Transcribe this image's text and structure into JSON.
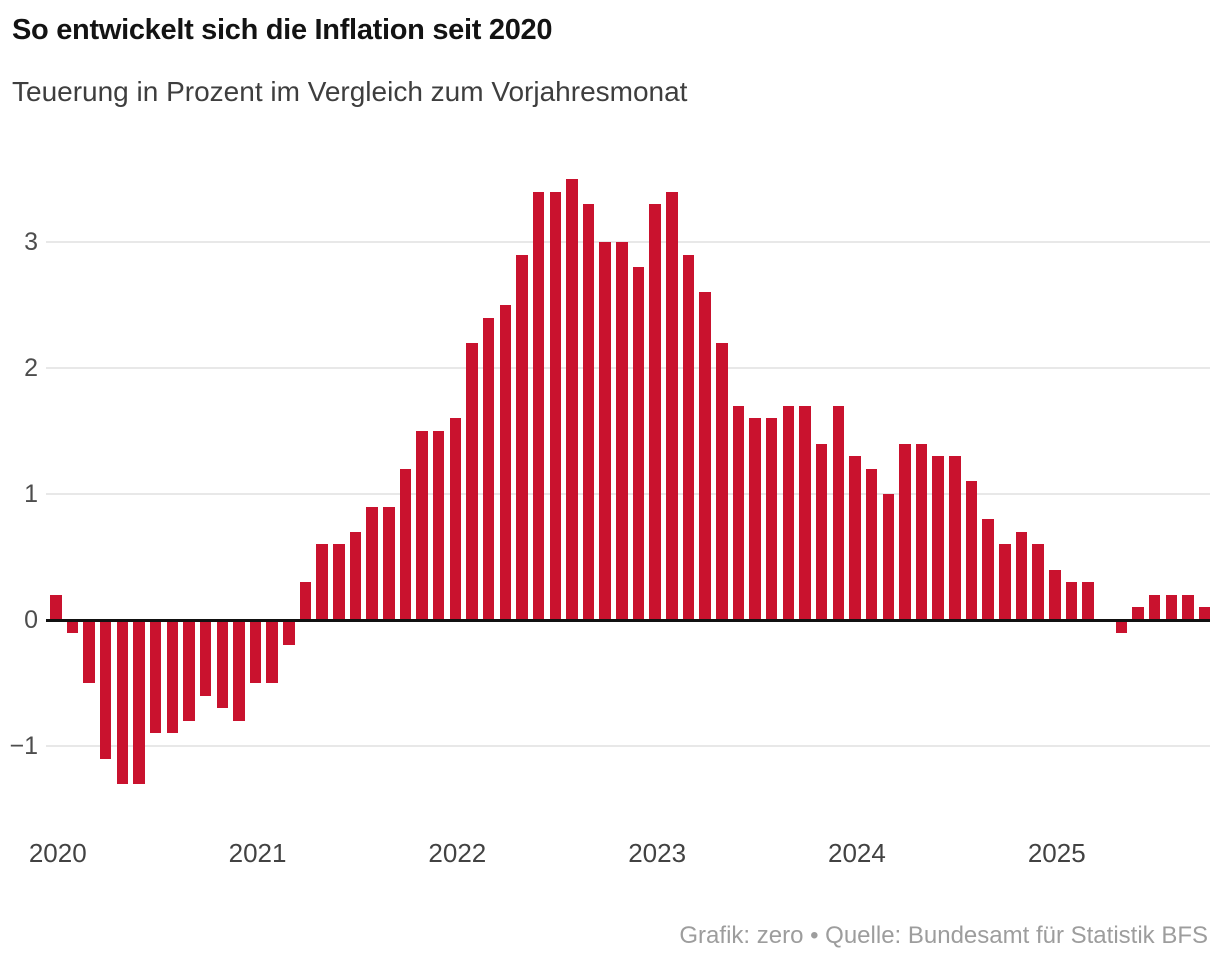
{
  "header": {
    "title": "So entwickelt sich die Inflation seit 2020",
    "subtitle": "Teuerung in Prozent im Vergleich zum Vorjahresmonat"
  },
  "footer": {
    "credit": "Grafik: zero • Quelle: Bundesamt für Statistik BFS"
  },
  "chart_data": {
    "type": "bar",
    "title": "So entwickelt sich die Inflation seit 2020",
    "subtitle": "Teuerung in Prozent im Vergleich zum Vorjahresmonat",
    "source": "Grafik: zero • Quelle: Bundesamt für Statistik BFS",
    "unit": "Prozent (Veränderung zum Vorjahresmonat)",
    "bar_color": "#c9122e",
    "grid_color": "#e8e8e8",
    "zero_line_color": "#111111",
    "legend": [],
    "grid": true,
    "ylim": [
      -1.45,
      3.6
    ],
    "y_ticks": [
      3,
      2,
      1,
      0,
      -1
    ],
    "x_tick_labels": [
      "2020",
      "2021",
      "2022",
      "2023",
      "2024",
      "2025"
    ],
    "x": [
      "2020-01",
      "2020-02",
      "2020-03",
      "2020-04",
      "2020-05",
      "2020-06",
      "2020-07",
      "2020-08",
      "2020-09",
      "2020-10",
      "2020-11",
      "2020-12",
      "2021-01",
      "2021-02",
      "2021-03",
      "2021-04",
      "2021-05",
      "2021-06",
      "2021-07",
      "2021-08",
      "2021-09",
      "2021-10",
      "2021-11",
      "2021-12",
      "2022-01",
      "2022-02",
      "2022-03",
      "2022-04",
      "2022-05",
      "2022-06",
      "2022-07",
      "2022-08",
      "2022-09",
      "2022-10",
      "2022-11",
      "2022-12",
      "2023-01",
      "2023-02",
      "2023-03",
      "2023-04",
      "2023-05",
      "2023-06",
      "2023-07",
      "2023-08",
      "2023-09",
      "2023-10",
      "2023-11",
      "2023-12",
      "2024-01",
      "2024-02",
      "2024-03",
      "2024-04",
      "2024-05",
      "2024-06",
      "2024-07",
      "2024-08",
      "2024-09",
      "2024-10",
      "2024-11",
      "2024-12",
      "2025-01",
      "2025-02",
      "2025-03",
      "2025-04",
      "2025-05",
      "2025-06",
      "2025-07",
      "2025-08",
      "2025-09",
      "2025-10"
    ],
    "values": [
      0.2,
      -0.1,
      -0.5,
      -1.1,
      -1.3,
      -1.3,
      -0.9,
      -0.9,
      -0.8,
      -0.6,
      -0.7,
      -0.8,
      -0.5,
      -0.5,
      -0.2,
      0.3,
      0.6,
      0.6,
      0.7,
      0.9,
      0.9,
      1.2,
      1.5,
      1.5,
      1.6,
      2.2,
      2.4,
      2.5,
      2.9,
      3.4,
      3.4,
      3.5,
      3.3,
      3.0,
      3.0,
      2.8,
      3.3,
      3.4,
      2.9,
      2.6,
      2.2,
      1.7,
      1.6,
      1.6,
      1.7,
      1.7,
      1.4,
      1.7,
      1.3,
      1.2,
      1.0,
      1.4,
      1.4,
      1.3,
      1.3,
      1.1,
      0.8,
      0.6,
      0.7,
      0.6,
      0.4,
      0.3,
      0.3,
      0.0,
      -0.1,
      0.1,
      0.2,
      0.2,
      0.2,
      0.1
    ]
  }
}
